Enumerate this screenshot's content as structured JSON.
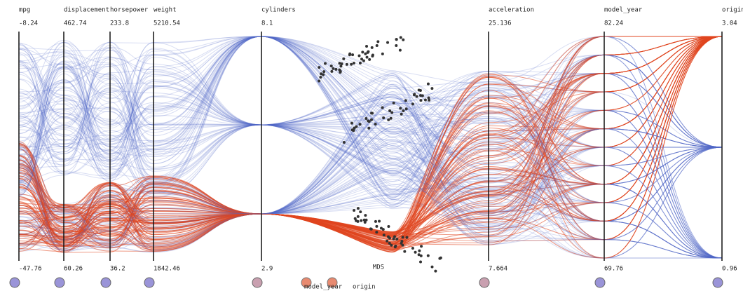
{
  "axes": [
    {
      "name": "mpg",
      "max": -8.24,
      "min": -47.76
    },
    {
      "name": "displacement",
      "max": 462.74,
      "min": 60.26
    },
    {
      "name": "horsepower",
      "max": 233.8,
      "min": 36.2
    },
    {
      "name": "weight",
      "max": 5210.54,
      "min": 1842.46
    },
    {
      "name": "cylinders",
      "max": 8.1,
      "min": 2.9
    },
    {
      "name": "acceleration",
      "max": 25.136,
      "min": 7.664
    },
    {
      "name": "model_year",
      "max": 82.24,
      "min": 69.76
    },
    {
      "name": "origin",
      "max": 3.04,
      "min": 0.96
    }
  ],
  "projection_label": "MDS",
  "legend": [
    "model_year",
    "origin"
  ]
}
